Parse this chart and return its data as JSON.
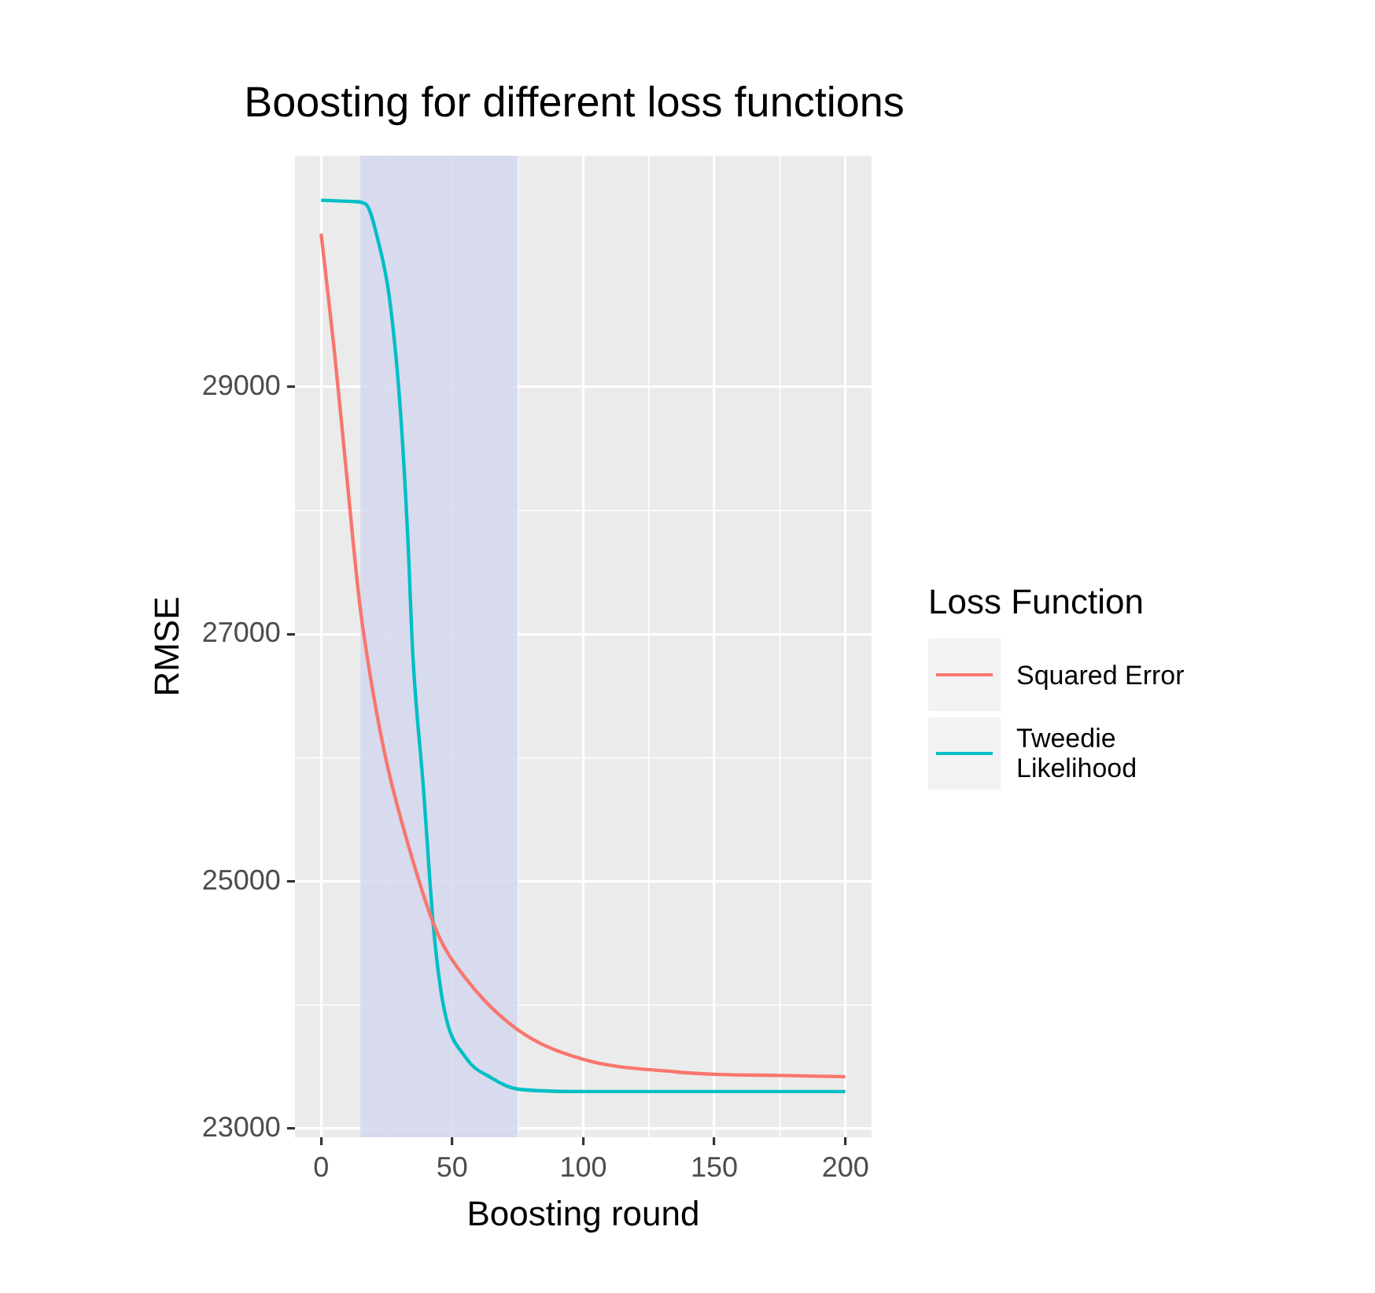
{
  "chart_data": {
    "type": "line",
    "title": "Boosting for different loss functions",
    "xlabel": "Boosting round",
    "ylabel": "RMSE",
    "legend_title": "Loss Function",
    "xlim": [
      -10,
      210
    ],
    "xticks": [
      0,
      50,
      100,
      150,
      200
    ],
    "ylim": [
      22930,
      30870
    ],
    "yticks": [
      23000,
      25000,
      27000,
      29000
    ],
    "grid": true,
    "legend": "right",
    "marker": "none",
    "line_style": "solid",
    "bands": [
      {
        "axis": "x",
        "from": 15,
        "to": 75,
        "color": "#d5d7ef"
      }
    ],
    "series": [
      {
        "name": "Squared Error",
        "color": "#f8766d",
        "x": [
          0,
          5,
          9,
          14,
          16,
          24,
          34,
          44,
          55,
          75,
          100,
          135,
          150,
          175,
          200
        ],
        "values": [
          30240,
          29300,
          28450,
          27380,
          27040,
          26060,
          25240,
          24600,
          24220,
          23800,
          23560,
          23460,
          23440,
          23430,
          23420
        ]
      },
      {
        "name": "Tweedie Likelihood",
        "color": "#00bfc4",
        "x": [
          0,
          12,
          17,
          22,
          26,
          30,
          33,
          35,
          39,
          43,
          47,
          55,
          65,
          75,
          100,
          150,
          200
        ],
        "values": [
          30510,
          30500,
          30480,
          30160,
          29730,
          28880,
          27810,
          26830,
          25760,
          24600,
          23960,
          23580,
          23410,
          23320,
          23300,
          23300,
          23300
        ]
      }
    ]
  }
}
